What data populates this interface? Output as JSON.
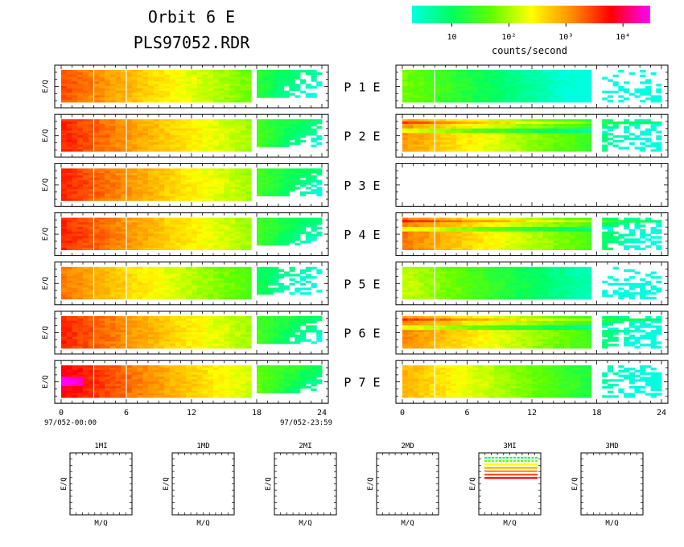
{
  "header": {
    "title_line1": "Orbit 6 E",
    "title_line2": "PLS97052.RDR"
  },
  "colorbar": {
    "label": "counts/second",
    "ticks": [
      "10",
      "10²",
      "10³",
      "10⁴"
    ],
    "tick_values": [
      10,
      100,
      1000,
      10000
    ],
    "range": [
      2,
      30000
    ],
    "scale": "log",
    "colors": [
      "#00ffe0",
      "#00ff60",
      "#60ff00",
      "#ffff00",
      "#ff9000",
      "#ff0000",
      "#ff00ff"
    ]
  },
  "chart_data": {
    "type": "heatmap",
    "x_axis": {
      "range": [
        0,
        24
      ],
      "ticks": [
        "0",
        "6",
        "12",
        "18",
        "24"
      ]
    },
    "x_start_label": "97/052-00:00",
    "x_end_label": "97/052-23:59",
    "ylabel": "E/Q",
    "panels": [
      {
        "label": "P 1 E",
        "num": "1",
        "left": {
          "level": 0.75,
          "gap": [
            17.7,
            18.0
          ]
        },
        "right": {
          "level": 0.36,
          "gap": [
            17.6,
            18.1
          ],
          "sparse_after": 18.1
        }
      },
      {
        "label": "P 2 E",
        "num": "2",
        "left": {
          "level": 0.8,
          "gap": [
            17.7,
            18.0
          ]
        },
        "right": {
          "level": 0.66,
          "gap": [
            17.6,
            18.1
          ],
          "banded": true
        }
      },
      {
        "label": "P 3 E",
        "num": "3",
        "left": {
          "level": 0.8,
          "gap": [
            17.7,
            18.0
          ]
        },
        "right": null
      },
      {
        "label": "P 4 E",
        "num": "4",
        "left": {
          "level": 0.8,
          "gap": [
            17.7,
            18.0
          ]
        },
        "right": {
          "level": 0.7,
          "gap": [
            17.6,
            18.1
          ],
          "banded": true
        }
      },
      {
        "label": "P 5 E",
        "num": "5",
        "left": {
          "level": 0.7,
          "gap": [
            17.7,
            18.0
          ]
        },
        "right": {
          "level": 0.45,
          "gap": [
            17.6,
            18.1
          ],
          "sparse_after": 18.1
        }
      },
      {
        "label": "P 6 E",
        "num": "6",
        "left": {
          "level": 0.8,
          "gap": [
            17.7,
            18.0
          ]
        },
        "right": {
          "level": 0.68,
          "gap": [
            17.6,
            18.1
          ],
          "banded": true
        }
      },
      {
        "label": "P 7 E",
        "num": "7",
        "left": {
          "level": 0.85,
          "gap": [
            17.7,
            18.0
          ],
          "hot": true
        },
        "right": {
          "level": 0.62,
          "gap": [
            17.6,
            18.1
          ]
        }
      }
    ],
    "mass_panels": [
      {
        "label": "1MI",
        "xlabel": "M/Q",
        "ylabel": "E/Q"
      },
      {
        "label": "1MD",
        "xlabel": "M/Q",
        "ylabel": "E/Q"
      },
      {
        "label": "2MI",
        "xlabel": "M/Q",
        "ylabel": "E/Q"
      },
      {
        "label": "2MD",
        "xlabel": "M/Q",
        "ylabel": "E/Q"
      },
      {
        "label": "3MI",
        "xlabel": "M/Q",
        "ylabel": "E/Q",
        "lines": [
          {
            "color": "#00ff60"
          },
          {
            "color": "#60ff00"
          },
          {
            "color": "#ffff00"
          },
          {
            "color": "#ffb000"
          },
          {
            "color": "#ff9000"
          },
          {
            "color": "#ff5000"
          },
          {
            "color": "#ff0000"
          }
        ]
      },
      {
        "label": "3MD",
        "xlabel": "M/Q",
        "ylabel": "E/Q"
      }
    ]
  }
}
